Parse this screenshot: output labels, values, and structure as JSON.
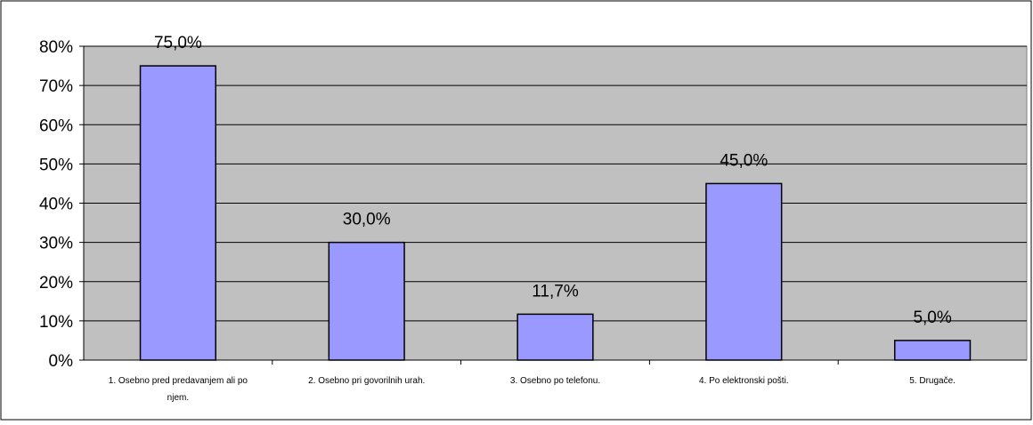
{
  "chart_data": {
    "type": "bar",
    "categories": [
      "1. Osebno pred predavanjem ali po njem.",
      "2. Osebno pri govorilnih urah.",
      "3. Osebno po telefonu.",
      "4. Po elektronski pošti.",
      "5. Drugače."
    ],
    "values": [
      75.0,
      30.0,
      11.7,
      45.0,
      5.0
    ],
    "data_labels": [
      "75,0%",
      "30,0%",
      "11,7%",
      "45,0%",
      "5,0%"
    ],
    "yticks": [
      "0%",
      "10%",
      "20%",
      "30%",
      "40%",
      "50%",
      "60%",
      "70%",
      "80%"
    ],
    "ylim": [
      0,
      80
    ],
    "grid": true,
    "legend": "none",
    "colors": {
      "bar": "#9999ff",
      "bar_border": "#000000",
      "plot_area": "#c0c0c0",
      "background": "#ffffff"
    }
  }
}
